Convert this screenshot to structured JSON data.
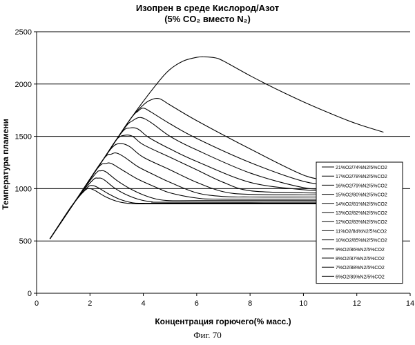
{
  "header": {
    "title_line1": "Изопрен в среде Кислород/Азот",
    "title_line2": "(5% CO₂ вместо N₂)"
  },
  "caption": "Фиг. 70",
  "chart_data": {
    "type": "line",
    "title": "Изопрен в среде Кислород/Азот (5% CO₂ вместо N₂)",
    "xlabel": "Концентрация горючего(% масс.)",
    "ylabel": "Температура пламени",
    "xlim": [
      0,
      14
    ],
    "ylim": [
      0,
      2500
    ],
    "xticks": [
      0,
      2,
      4,
      6,
      8,
      10,
      12,
      14
    ],
    "yticks": [
      0,
      500,
      1000,
      1500,
      2000,
      2500
    ],
    "grid": "horizontal",
    "legend_position": "right",
    "series": [
      {
        "name": "21%O2/74%N2/5%CO2",
        "x": [
          0.5,
          1.5,
          2.5,
          3.5,
          4.5,
          5.0,
          5.5,
          6.0,
          6.3,
          6.7,
          7.0,
          8.0,
          9.0,
          10.0,
          11.0,
          12.0,
          13.0
        ],
        "y": [
          520,
          900,
          1280,
          1660,
          2000,
          2140,
          2220,
          2255,
          2260,
          2250,
          2220,
          2080,
          1950,
          1830,
          1720,
          1620,
          1540
        ]
      },
      {
        "name": "17%O2/78%N2/5%CO2",
        "x": [
          0.5,
          1.5,
          2.5,
          3.5,
          4.0,
          4.3,
          4.6,
          5.0,
          6.0,
          8.0,
          10.0,
          11.0
        ],
        "y": [
          520,
          900,
          1280,
          1660,
          1800,
          1850,
          1860,
          1800,
          1650,
          1380,
          1130,
          1080
        ]
      },
      {
        "name": "16%O2/79%N2/5%CO2",
        "x": [
          0.5,
          1.5,
          2.5,
          3.5,
          3.8,
          4.0,
          4.3,
          5.0,
          6.0,
          8.0,
          10.0,
          11.0
        ],
        "y": [
          520,
          900,
          1280,
          1660,
          1740,
          1770,
          1730,
          1620,
          1480,
          1250,
          1070,
          1040
        ]
      },
      {
        "name": "15%O2/80%N2/5%CO2",
        "x": [
          0.5,
          1.5,
          2.5,
          3.3,
          3.6,
          3.9,
          4.3,
          5.0,
          6.0,
          8.0,
          10.0,
          11.0
        ],
        "y": [
          520,
          900,
          1280,
          1580,
          1650,
          1680,
          1630,
          1500,
          1370,
          1150,
          1010,
          1000
        ]
      },
      {
        "name": "14%O2/81%N2/5%CO2",
        "x": [
          0.5,
          1.5,
          2.5,
          3.2,
          3.5,
          3.8,
          4.2,
          5.0,
          6.0,
          8.0,
          10.0,
          11.0
        ],
        "y": [
          520,
          900,
          1280,
          1540,
          1580,
          1570,
          1490,
          1380,
          1260,
          1060,
          990,
          985
        ]
      },
      {
        "name": "13%O2/82%N2/5%CO2",
        "x": [
          0.5,
          1.5,
          2.5,
          3.0,
          3.3,
          3.6,
          4.0,
          5.0,
          6.0,
          7.0,
          8.0,
          10.0,
          11.0
        ],
        "y": [
          520,
          900,
          1280,
          1470,
          1510,
          1500,
          1420,
          1300,
          1180,
          1060,
          980,
          960,
          960
        ]
      },
      {
        "name": "12%O2/83%N2/5%CO2",
        "x": [
          0.5,
          1.5,
          2.5,
          2.9,
          3.2,
          3.5,
          4.0,
          5.0,
          6.0,
          7.0,
          8.0,
          10.0,
          11.0
        ],
        "y": [
          520,
          900,
          1280,
          1410,
          1430,
          1400,
          1300,
          1180,
          1060,
          970,
          945,
          940,
          940
        ]
      },
      {
        "name": "11%O2/84%N2/5%CO2",
        "x": [
          0.5,
          1.5,
          2.5,
          2.8,
          3.0,
          3.3,
          3.8,
          4.5,
          5.0,
          6.0,
          7.0,
          8.0,
          11.0
        ],
        "y": [
          520,
          900,
          1280,
          1330,
          1340,
          1300,
          1210,
          1120,
          1060,
          960,
          925,
          920,
          920
        ]
      },
      {
        "name": "10%O2/85%N2/5%CO2",
        "x": [
          0.5,
          1.5,
          2.3,
          2.6,
          2.8,
          3.2,
          3.8,
          4.5,
          5.0,
          6.0,
          7.0,
          11.0
        ],
        "y": [
          520,
          900,
          1200,
          1240,
          1240,
          1180,
          1090,
          1010,
          960,
          910,
          900,
          900
        ]
      },
      {
        "name": "9%O2/86%N2/5%CO2",
        "x": [
          0.5,
          1.5,
          2.2,
          2.4,
          2.6,
          3.0,
          3.5,
          4.0,
          4.5,
          5.0,
          6.0,
          11.0
        ],
        "y": [
          520,
          900,
          1140,
          1170,
          1160,
          1080,
          1000,
          940,
          900,
          885,
          885,
          885
        ]
      },
      {
        "name": "8%O2/87%N2/5%CO2",
        "x": [
          0.5,
          1.5,
          2.1,
          2.3,
          2.5,
          2.9,
          3.3,
          3.8,
          4.3,
          5.0,
          11.0
        ],
        "y": [
          520,
          900,
          1080,
          1100,
          1090,
          1010,
          950,
          900,
          875,
          870,
          870
        ]
      },
      {
        "name": "7%O2/88%N2/5%CO2",
        "x": [
          0.5,
          1.4,
          1.9,
          2.1,
          2.3,
          2.7,
          3.1,
          3.6,
          4.0,
          5.0,
          11.0
        ],
        "y": [
          520,
          860,
          1010,
          1030,
          1010,
          950,
          900,
          865,
          860,
          860,
          860
        ]
      },
      {
        "name": "6%O2/89%N2/5%CO2",
        "x": [
          0.5,
          1.3,
          1.8,
          2.0,
          2.2,
          2.6,
          3.0,
          3.4,
          3.8,
          5.0,
          11.0
        ],
        "y": [
          520,
          830,
          980,
          1000,
          980,
          920,
          880,
          860,
          855,
          855,
          855
        ]
      }
    ]
  }
}
